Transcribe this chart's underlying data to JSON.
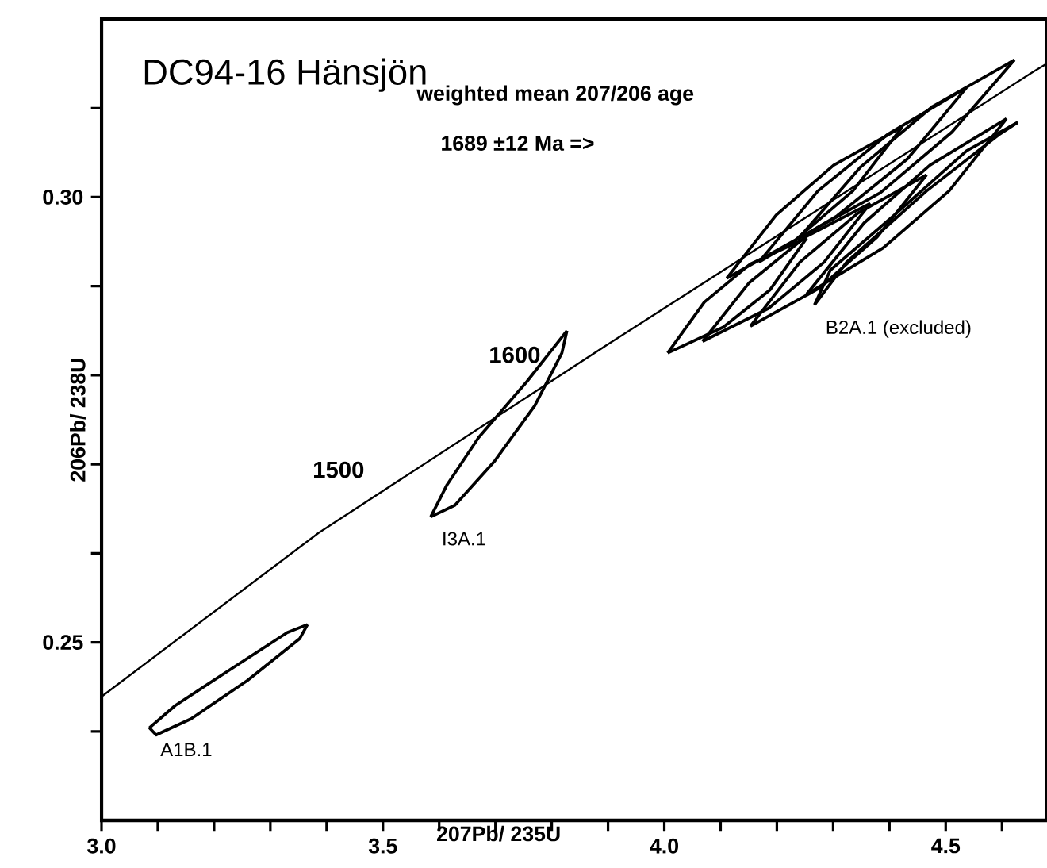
{
  "chart_data": {
    "type": "line",
    "title": "DC94-16 Hänsjön",
    "xlabel": "207Pb/ 235U",
    "ylabel": "206Pb/ 238U",
    "annotations": [
      "weighted mean 207/206 age",
      "1689 ±12 Ma =>",
      {
        "text": "1500",
        "x": 3.528,
        "y": 0.2682
      },
      {
        "text": "1600",
        "x": 3.841,
        "y": 0.2811
      }
    ],
    "xlim": [
      3.0,
      4.68
    ],
    "ylim": [
      0.23,
      0.32
    ],
    "xticks": [
      {
        "value": 3.0,
        "label": "3.0"
      },
      {
        "value": 3.1,
        "label": null
      },
      {
        "value": 3.2,
        "label": null
      },
      {
        "value": 3.3,
        "label": null
      },
      {
        "value": 3.4,
        "label": null
      },
      {
        "value": 3.5,
        "label": "3.5"
      },
      {
        "value": 3.6,
        "label": null
      },
      {
        "value": 3.7,
        "label": null
      },
      {
        "value": 3.8,
        "label": null
      },
      {
        "value": 3.9,
        "label": null
      },
      {
        "value": 4.0,
        "label": "4.0"
      },
      {
        "value": 4.1,
        "label": null
      },
      {
        "value": 4.2,
        "label": null
      },
      {
        "value": 4.3,
        "label": null
      },
      {
        "value": 4.4,
        "label": null
      },
      {
        "value": 4.5,
        "label": "4.5"
      },
      {
        "value": 4.6,
        "label": null
      }
    ],
    "yticks": [
      {
        "value": 0.24,
        "label": null
      },
      0.25,
      {
        "value": 0.26,
        "label": null
      },
      {
        "value": 0.27,
        "label": null
      },
      {
        "value": 0.28,
        "label": null
      },
      {
        "value": 0.29,
        "label": null
      },
      {
        "value": 0.3,
        "label": "0.30"
      },
      {
        "value": 0.31,
        "label": null
      }
    ],
    "series": [
      {
        "color": "#000000",
        "x": [
          3.0,
          3.386,
          3.898,
          4.656,
          4.68
        ],
        "values": [
          0.2439,
          0.2623,
          0.2834,
          0.3141,
          0.315
        ]
      },
      {
        "color": "#000000",
        "x": [
          3.085,
          3.131,
          3.23,
          3.33,
          3.366
        ],
        "values": [
          0.2404,
          0.2429,
          0.247,
          0.2511,
          0.252
        ]
      },
      {
        "name": "A1B.1",
        "color": "#000000",
        "x": [
          3.085,
          3.097,
          3.159,
          3.259,
          3.352,
          3.366
        ],
        "values": [
          0.2404,
          0.2396,
          0.2414,
          0.2457,
          0.2504,
          0.252
        ]
      },
      {
        "color": "#000000",
        "x": [
          3.585,
          3.614,
          3.67,
          3.756,
          3.827
        ],
        "values": [
          0.2641,
          0.2677,
          0.273,
          0.2793,
          0.285
        ]
      },
      {
        "name": "I3A.1",
        "color": "#000000",
        "x": [
          3.585,
          3.628,
          3.699,
          3.77,
          3.818,
          3.827
        ],
        "values": [
          0.2641,
          0.2654,
          0.2704,
          0.2766,
          0.2825,
          0.285
        ]
      },
      {
        "color": "#000000",
        "x": [
          4.267,
          4.324,
          4.466,
          4.594,
          4.628
        ],
        "values": [
          0.2879,
          0.2927,
          0.3007,
          0.307,
          0.3084
        ]
      },
      {
        "name": "B2A.1 (excluded)",
        "color": "#000000",
        "x": [
          4.267,
          4.295,
          4.409,
          4.537,
          4.628
        ],
        "values": [
          0.2879,
          0.2918,
          0.298,
          0.3052,
          0.3084
        ]
      },
      {
        "color": "#000000",
        "x": [
          4.006,
          4.071,
          4.153,
          4.253
        ],
        "values": [
          0.2825,
          0.2882,
          0.2925,
          0.2954
        ]
      },
      {
        "color": "#000000",
        "x": [
          4.006,
          4.105,
          4.188,
          4.253
        ],
        "values": [
          0.2825,
          0.2854,
          0.2896,
          0.2954
        ]
      },
      {
        "color": "#000000",
        "x": [
          4.068,
          4.151,
          4.25,
          4.366
        ],
        "values": [
          0.2838,
          0.2904,
          0.2955,
          0.2993
        ]
      },
      {
        "color": "#000000",
        "x": [
          4.068,
          4.185,
          4.284,
          4.366
        ],
        "values": [
          0.2838,
          0.2875,
          0.2927,
          0.2993
        ]
      },
      {
        "color": "#000000",
        "x": [
          4.111,
          4.199,
          4.301,
          4.423
        ],
        "values": [
          0.2909,
          0.298,
          0.3036,
          0.3079
        ]
      },
      {
        "color": "#000000",
        "x": [
          4.111,
          4.233,
          4.335,
          4.423
        ],
        "values": [
          0.2909,
          0.2952,
          0.3007,
          0.3079
        ]
      },
      {
        "color": "#000000",
        "x": [
          4.168,
          4.273,
          4.398,
          4.537
        ],
        "values": [
          0.2927,
          0.3007,
          0.3071,
          0.3123
        ]
      },
      {
        "color": "#000000",
        "x": [
          4.168,
          4.307,
          4.432,
          4.537
        ],
        "values": [
          0.2927,
          0.2979,
          0.3043,
          0.3123
        ]
      },
      {
        "color": "#000000",
        "x": [
          4.239,
          4.349,
          4.477,
          4.622
        ],
        "values": [
          0.2954,
          0.3034,
          0.3102,
          0.3154
        ]
      },
      {
        "color": "#000000",
        "x": [
          4.239,
          4.384,
          4.511,
          4.622
        ],
        "values": [
          0.2954,
          0.3005,
          0.3073,
          0.3154
        ]
      },
      {
        "color": "#000000",
        "x": [
          4.253,
          4.355,
          4.472,
          4.608
        ],
        "values": [
          0.2891,
          0.2971,
          0.3036,
          0.3088
        ]
      },
      {
        "color": "#000000",
        "x": [
          4.253,
          4.389,
          4.506,
          4.608
        ],
        "values": [
          0.2891,
          0.2943,
          0.3007,
          0.3088
        ]
      },
      {
        "color": "#000000",
        "x": [
          4.153,
          4.241,
          4.344,
          4.466
        ],
        "values": [
          0.2855,
          0.2927,
          0.2982,
          0.3025
        ]
      },
      {
        "color": "#000000",
        "x": [
          4.153,
          4.276,
          4.378,
          4.466
        ],
        "values": [
          0.2855,
          0.2898,
          0.2955,
          0.3025
        ]
      }
    ]
  }
}
